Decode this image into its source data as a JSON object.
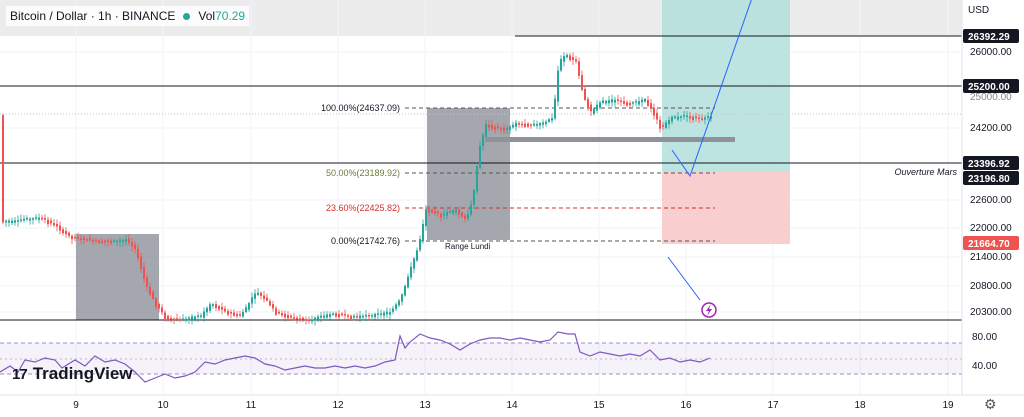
{
  "header": {
    "symbol": "Bitcoin / Dollar · 1h · BINANCE",
    "vol_label": "Vol",
    "vol_value": "70.29"
  },
  "currency": "USD",
  "brand": {
    "logo": "17",
    "name": "TradingView"
  },
  "price_axis": {
    "labels": [
      "26000.00",
      "24200.00",
      "22600.00",
      "22000.00",
      "21400.00",
      "20800.00",
      "20300.00"
    ],
    "badges": [
      "26392.29",
      "25200.00",
      "23396.92",
      "23196.80",
      "21664.70"
    ],
    "partial": "25000.00"
  },
  "rsi_axis": {
    "labels": [
      "80.00",
      "40.00"
    ]
  },
  "time_axis": {
    "labels": [
      "9",
      "10",
      "11",
      "12",
      "13",
      "14",
      "15",
      "16",
      "17",
      "18",
      "19"
    ]
  },
  "fib": {
    "levels": [
      {
        "label": "100.00%(24637.09)"
      },
      {
        "label": "50.00%(23189.92)"
      },
      {
        "label": "23.60%(22425.82)"
      },
      {
        "label": "0.00%(21742.76)"
      }
    ],
    "range_label": "Range Lundi"
  },
  "annotations": {
    "ouverture": "Ouverture Mars"
  },
  "colors": {
    "up": "#26a69a",
    "down": "#ef5350",
    "rsi": "#7e57c2",
    "target": "#b2dfdb",
    "stop": "#f7c9c9"
  },
  "icons": {
    "alert": "lightning-icon",
    "settings": "gear-icon"
  }
}
